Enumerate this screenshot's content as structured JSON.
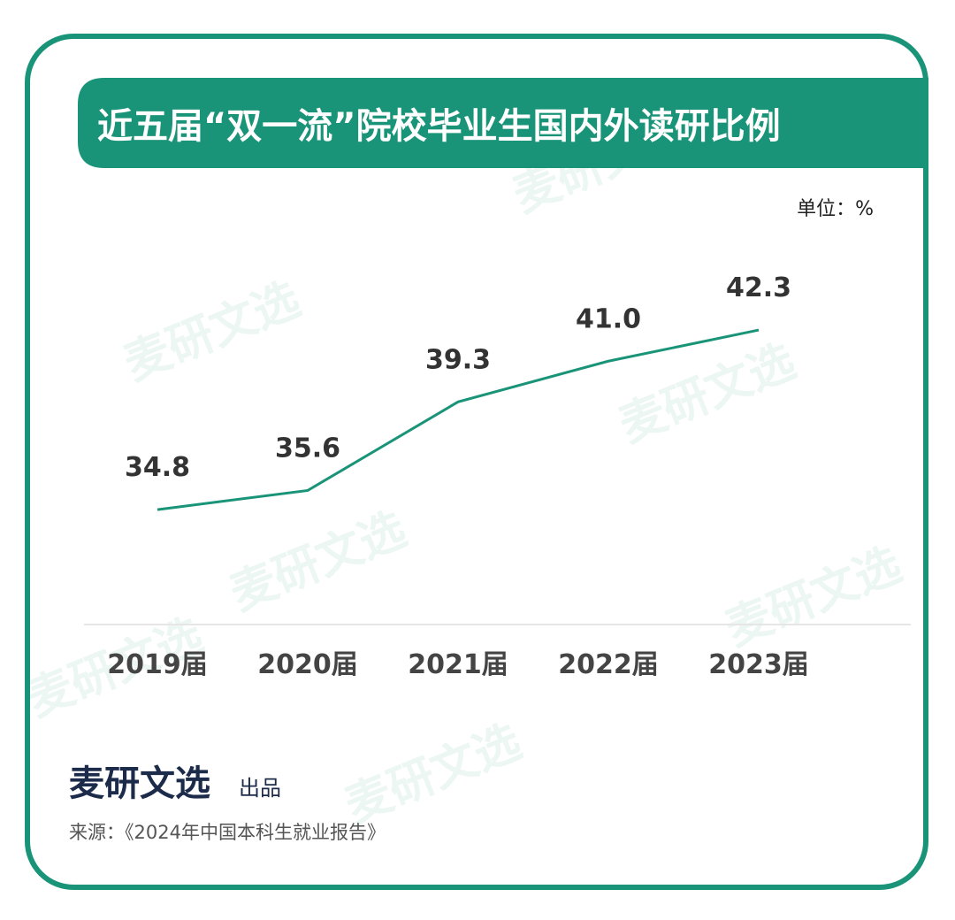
{
  "chart_data": {
    "type": "line",
    "title": "近五届“双一流”院校毕业生国内外读研比例",
    "unit": "单位：%",
    "categories": [
      "2019届",
      "2020届",
      "2021届",
      "2022届",
      "2023届"
    ],
    "values": [
      34.8,
      35.6,
      39.3,
      41.0,
      42.3
    ],
    "value_labels": [
      "34.8",
      "35.6",
      "39.3",
      "41.0",
      "42.3"
    ],
    "color": "#1a9478",
    "ylim": [
      30,
      45
    ],
    "brand": "麦研文选",
    "brand_suffix": "出品",
    "source": "来源：《2024年中国本科生就业报告》",
    "watermark": "麦研文选"
  }
}
